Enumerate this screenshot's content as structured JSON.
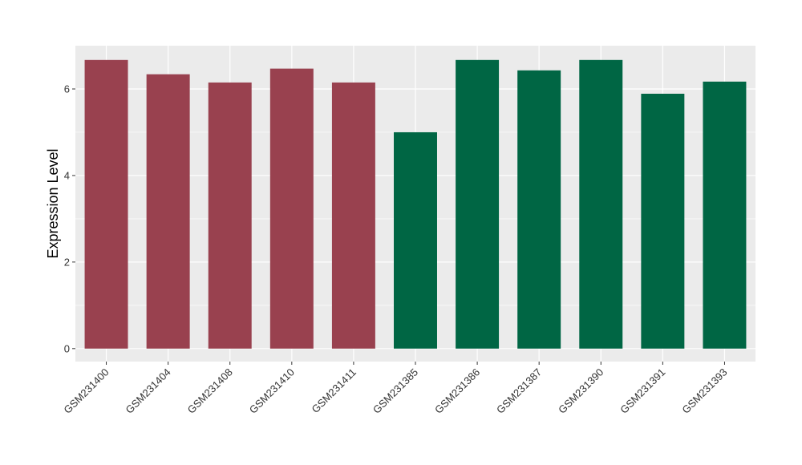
{
  "chart_data": {
    "type": "bar",
    "ylabel": "Expression Level",
    "xlabel": "",
    "ylim": [
      -0.3,
      7.0
    ],
    "yticks": [
      0,
      2,
      4,
      6
    ],
    "categories": [
      "GSM231400",
      "GSM231404",
      "GSM231408",
      "GSM231410",
      "GSM231411",
      "GSM231385",
      "GSM231386",
      "GSM231387",
      "GSM231390",
      "GSM231391",
      "GSM231393"
    ],
    "values": [
      6.67,
      6.34,
      6.15,
      6.47,
      6.15,
      5.0,
      6.67,
      6.43,
      6.67,
      5.89,
      6.17
    ],
    "groups": [
      0,
      0,
      0,
      0,
      0,
      1,
      1,
      1,
      1,
      1,
      1
    ],
    "group_colors": [
      "#99414f",
      "#006644"
    ],
    "panel_background": "#ebebeb",
    "grid": true,
    "grid_color": "#ffffff",
    "legend": "none"
  }
}
